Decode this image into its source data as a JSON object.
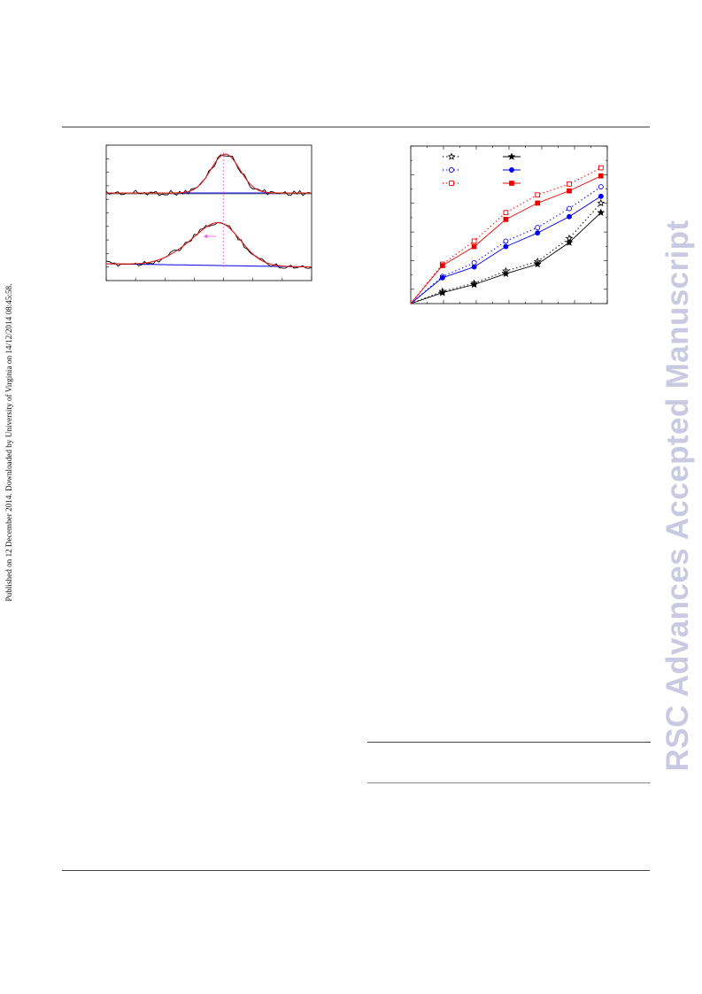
{
  "side_note": "Published on 12 December 2014. Downloaded by University of Virginia on 14/12/2014 08:45:58.",
  "watermark": "RSC Advances Accepted Manuscript",
  "figure_left": {
    "type": "line",
    "panels": [
      {
        "name": "",
        "baseline": "blue",
        "fit": "red",
        "data": "black"
      },
      {
        "name": "",
        "baseline": "blue",
        "fit": "red",
        "data": "black"
      }
    ],
    "colors": {
      "data": "#000000",
      "fit": "#e31a1c",
      "baseline": "#0000ee",
      "marker": "#ee55ee"
    }
  },
  "chart_data": {
    "type": "line",
    "x": [
      0,
      1,
      2,
      3,
      4,
      5,
      6
    ],
    "ylim": [
      0,
      5.8
    ],
    "xlim": [
      0,
      6.2
    ],
    "series": [
      {
        "style": "open-star-dotted",
        "color": "#000000",
        "values": [
          0,
          0.45,
          0.75,
          1.2,
          1.55,
          2.4,
          3.7
        ]
      },
      {
        "style": "filled-star-solid",
        "color": "#000000",
        "values": [
          0,
          0.4,
          0.7,
          1.1,
          1.45,
          2.25,
          3.35
        ]
      },
      {
        "style": "open-circle-dotted",
        "color": "#0000ee",
        "values": [
          0,
          1.0,
          1.5,
          2.3,
          2.8,
          3.5,
          4.3
        ]
      },
      {
        "style": "filled-circle-solid",
        "color": "#0000ee",
        "values": [
          0,
          0.95,
          1.35,
          2.1,
          2.6,
          3.2,
          3.95
        ]
      },
      {
        "style": "open-square-dotted",
        "color": "#ee0000",
        "values": [
          0,
          1.45,
          2.3,
          3.35,
          4.0,
          4.4,
          5.0
        ]
      },
      {
        "style": "filled-square-solid",
        "color": "#ee0000",
        "values": [
          0,
          1.4,
          2.1,
          3.1,
          3.7,
          4.15,
          4.7
        ]
      }
    ],
    "legend": "top-left",
    "grid": false
  }
}
